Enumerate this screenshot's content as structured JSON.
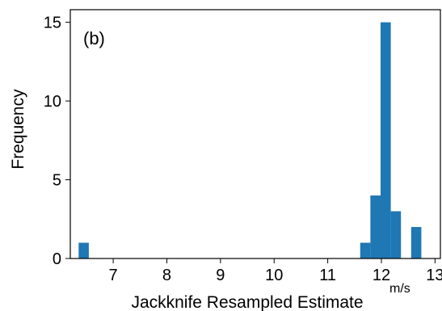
{
  "chart_data": {
    "type": "bar",
    "panel_label": "(b)",
    "xlabel": "Jackknife Resampled Estimate",
    "x_unit": "m/s",
    "ylabel": "Frequency",
    "xlim": [
      6.2,
      13.1
    ],
    "ylim": [
      0,
      15.8
    ],
    "x_ticks": [
      7,
      8,
      9,
      10,
      11,
      12,
      13
    ],
    "y_ticks": [
      0,
      5,
      10,
      15
    ],
    "bar_color": "#1f77b4",
    "bin_width": 0.19,
    "bins": [
      {
        "x": 6.45,
        "value": 1
      },
      {
        "x": 11.7,
        "value": 1
      },
      {
        "x": 11.89,
        "value": 4
      },
      {
        "x": 12.08,
        "value": 15
      },
      {
        "x": 12.27,
        "value": 3
      },
      {
        "x": 12.65,
        "value": 2
      }
    ],
    "grid": false,
    "legend": "none"
  }
}
